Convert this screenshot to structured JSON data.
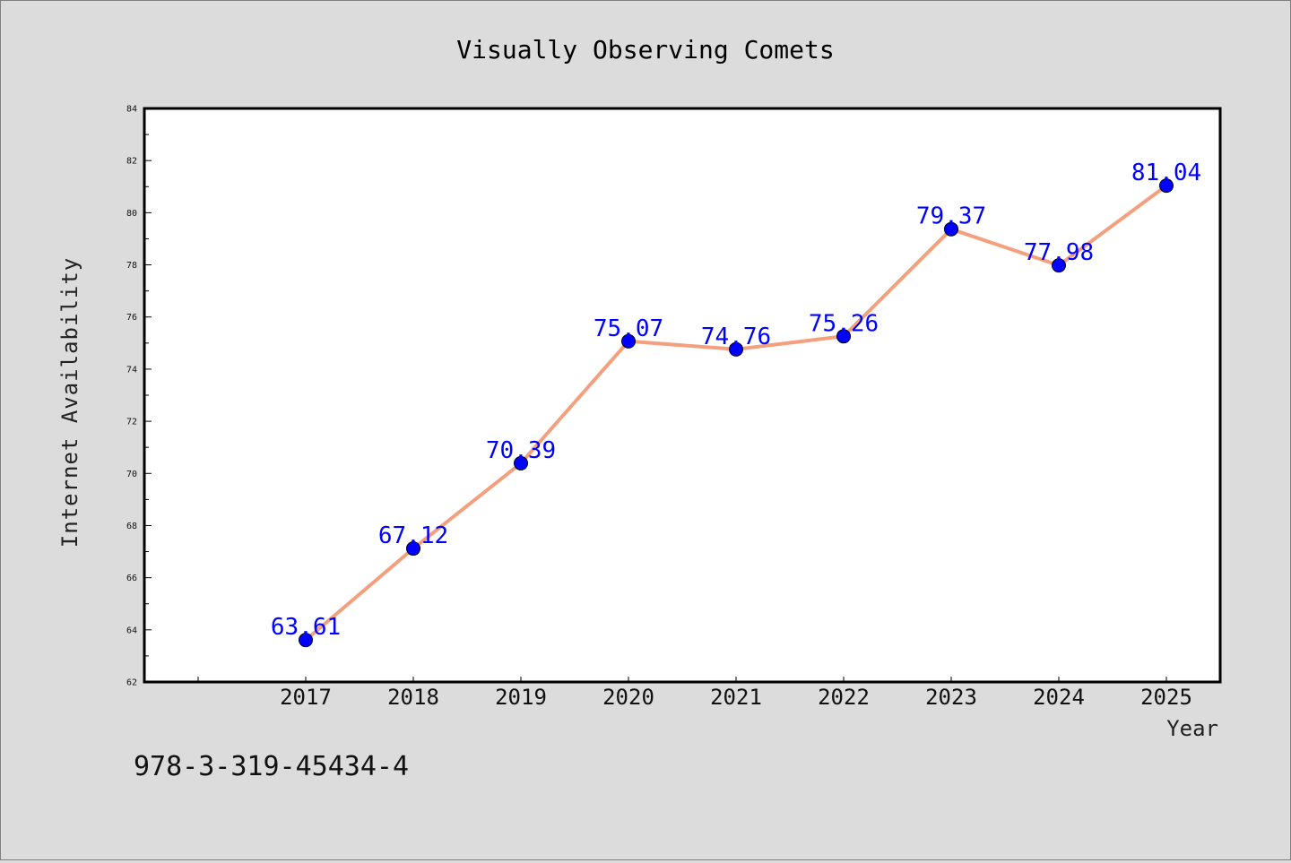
{
  "chart_data": {
    "type": "line",
    "title": "Visually Observing Comets",
    "xlabel": "Year",
    "ylabel": "Internet Availability",
    "x": [
      "2017",
      "2018",
      "2019",
      "2020",
      "2021",
      "2022",
      "2023",
      "2024",
      "2025"
    ],
    "series": [
      {
        "values": [
          63.61,
          67.12,
          70.39,
          75.07,
          74.76,
          75.26,
          79.37,
          77.98,
          81.04
        ],
        "line_color": "#f4a07e",
        "marker_color": "#0000ff"
      }
    ],
    "data_labels": [
      "63.61",
      "67.12",
      "70.39",
      "75.07",
      "74.76",
      "75.26",
      "79.37",
      "77.98",
      "81.04"
    ],
    "ylim": [
      62,
      84
    ],
    "yticks": [
      "62",
      "64",
      "66",
      "68",
      "70",
      "72",
      "74",
      "76",
      "78",
      "80",
      "82",
      "84"
    ],
    "grid": false,
    "legend": "none",
    "data_label_color": "#0000ff"
  },
  "annotation": "978-3-319-45434-4"
}
